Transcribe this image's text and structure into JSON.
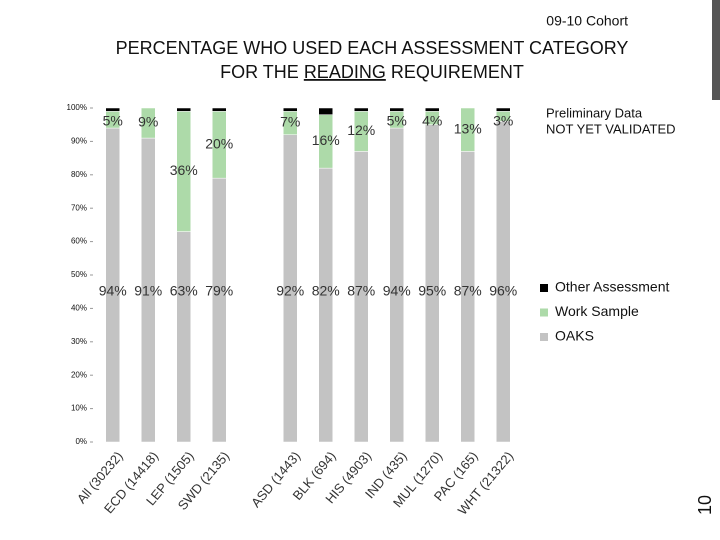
{
  "header": "09-10 Cohort",
  "slide_number": "10",
  "chart_data": {
    "type": "stacked_bar",
    "title_lines": [
      [
        "PERCENTAGE WHO USED EACH ASSESSMENT CATEGORY"
      ],
      [
        "FOR THE ",
        "READING",
        " REQUIREMENT"
      ]
    ],
    "annotation": [
      "Preliminary Data",
      "NOT YET VALIDATED"
    ],
    "categories": [
      "All (30232)",
      "ECD (14418)",
      "LEP (1505)",
      "SWD (2135)",
      null,
      "ASD (1443)",
      "BLK (694)",
      "HIS (4903)",
      "IND (435)",
      "MUL (1270)",
      "PAC (165)",
      "WHT (21322)"
    ],
    "series": [
      {
        "name": "OAKS",
        "color": "#c3c3c3",
        "values": [
          94,
          91,
          63,
          79,
          null,
          92,
          82,
          87,
          94,
          95,
          87,
          96
        ],
        "value_labels": [
          "94%",
          "91%",
          "63%",
          "79%",
          null,
          "92%",
          "82%",
          "87%",
          "94%",
          "95%",
          "87%",
          "96%"
        ]
      },
      {
        "name": "Work Sample",
        "color": "#addaa9",
        "values": [
          5,
          9,
          36,
          20,
          null,
          7,
          16,
          12,
          5,
          4,
          13,
          3
        ],
        "value_labels": [
          "5%",
          "9%",
          "36%",
          "20%",
          null,
          "7%",
          "16%",
          "12%",
          "5%",
          "4%",
          "13%",
          "3%"
        ]
      },
      {
        "name": "Other Assessment",
        "color": "#000000",
        "values": [
          1,
          0,
          1,
          1,
          null,
          1,
          2,
          1,
          1,
          1,
          0,
          1
        ]
      }
    ],
    "ylim": [
      0,
      100
    ],
    "yticks": [
      {
        "value": 0,
        "label": "0%"
      },
      {
        "value": 10,
        "label": "10%"
      },
      {
        "value": 20,
        "label": "20%"
      },
      {
        "value": 30,
        "label": "30%"
      },
      {
        "value": 40,
        "label": "40%"
      },
      {
        "value": 50,
        "label": "50%"
      },
      {
        "value": 60,
        "label": "60%"
      },
      {
        "value": 70,
        "label": "70%"
      },
      {
        "value": 80,
        "label": "80%"
      },
      {
        "value": 90,
        "label": "90%"
      },
      {
        "value": 100,
        "label": "100%"
      }
    ],
    "grid": false,
    "legend": "right"
  }
}
